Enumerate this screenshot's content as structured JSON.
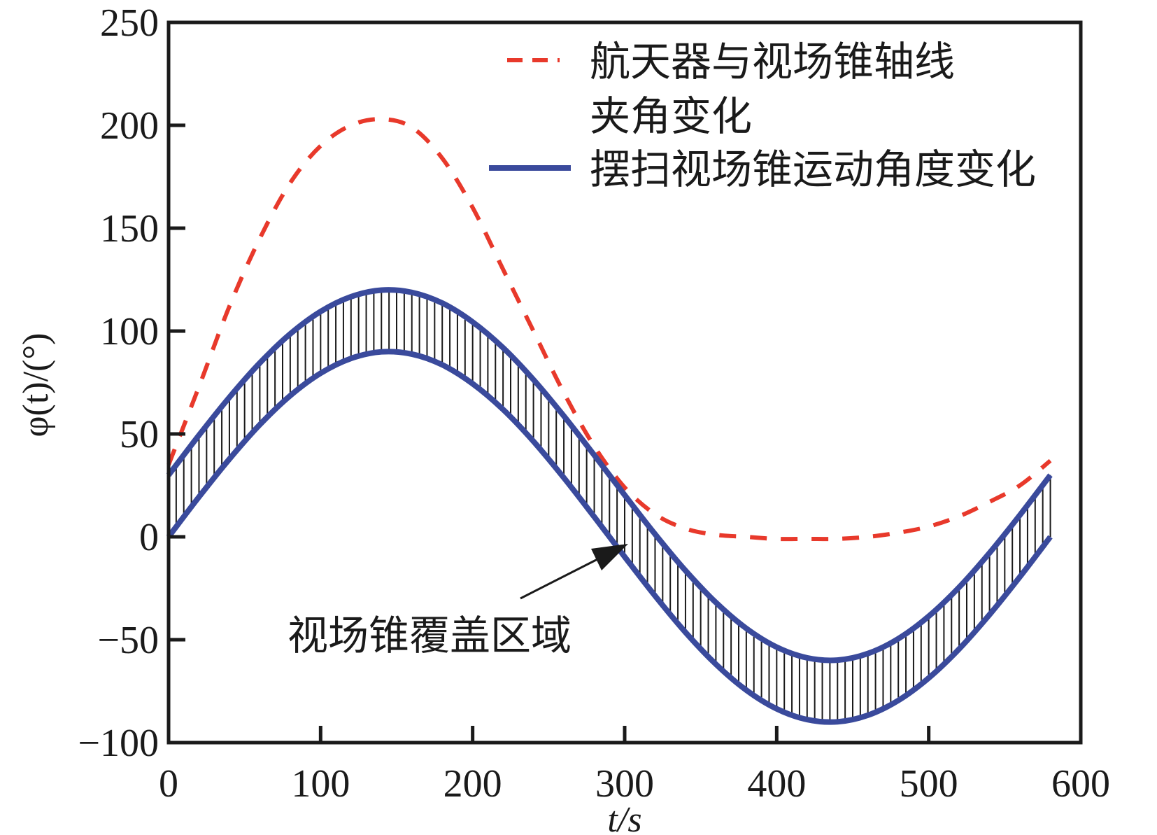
{
  "chart_data": {
    "type": "line",
    "xlabel": "t/s",
    "ylabel": "φ(t)/(°)",
    "xlim": [
      0,
      600
    ],
    "ylim": [
      -100,
      250
    ],
    "xticks": [
      0,
      100,
      200,
      300,
      400,
      500,
      600
    ],
    "yticks": [
      250,
      200,
      150,
      100,
      50,
      0,
      -50,
      -100
    ],
    "xtick_labels": [
      "0",
      "100",
      "200",
      "300",
      "400",
      "500",
      "600"
    ],
    "ytick_labels": [
      "250",
      "200",
      "150",
      "100",
      "50",
      "0",
      "−50",
      "−100"
    ],
    "grid": false,
    "legend_position": "top-right",
    "x": [
      0,
      20,
      40,
      60,
      80,
      100,
      120,
      140,
      160,
      180,
      200,
      220,
      240,
      260,
      280,
      300,
      320,
      340,
      360,
      380,
      400,
      420,
      440,
      460,
      480,
      500,
      520,
      540,
      560,
      580
    ],
    "series": [
      {
        "name": "航天器与视场锥轴线夹角变化",
        "legend_lines": [
          "航天器与视场锥轴线",
          "夹角变化"
        ],
        "style": "dashed",
        "color": "#e8392b",
        "values": [
          35,
          73,
          112,
          145,
          172,
          190,
          200,
          203,
          199,
          184,
          160,
          130,
          100,
          70,
          44,
          24,
          11,
          4,
          1,
          0,
          -1,
          -1,
          -1,
          0,
          2,
          5,
          10,
          17,
          25,
          37
        ]
      },
      {
        "name": "摆扫视场锥运动角度变化",
        "role": "upper bound",
        "style": "solid",
        "color": "#3a4a9c",
        "values": [
          30,
          49.4,
          67.8,
          84.5,
          98.6,
          109.5,
          116.7,
          119.9,
          118.8,
          113.6,
          104.4,
          91.9,
          76.4,
          58.7,
          39.7,
          20.3,
          1.3,
          -16.4,
          -31.9,
          -44.5,
          -53.6,
          -58.8,
          -59.9,
          -56.7,
          -49.5,
          -38.6,
          -24.5,
          -7.8,
          10.6,
          30
        ]
      },
      {
        "name": "摆扫视场锥运动角度变化",
        "role": "lower bound",
        "style": "solid",
        "color": "#3a4a9c",
        "values": [
          0,
          19.4,
          37.8,
          54.5,
          68.6,
          79.5,
          86.7,
          89.9,
          88.8,
          83.6,
          74.4,
          61.9,
          46.4,
          28.7,
          9.7,
          -9.7,
          -28.7,
          -46.4,
          -61.9,
          -74.5,
          -83.6,
          -88.8,
          -89.9,
          -86.7,
          -79.5,
          -68.6,
          -54.5,
          -37.8,
          -19.4,
          0
        ]
      }
    ],
    "fill_between": {
      "label": "视场锥覆盖区域",
      "pattern": "vertical-hatch",
      "hatch_step_s": 5
    },
    "annotation": {
      "text": "视场锥覆盖区域",
      "points_to": [
        293,
        0
      ]
    }
  }
}
